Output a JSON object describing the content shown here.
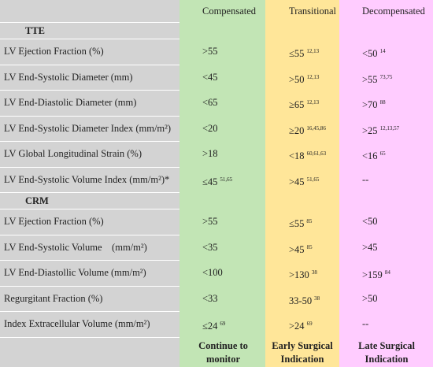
{
  "header": {
    "columns": [
      "Compensated",
      "Transitional",
      "Decompensated"
    ]
  },
  "sections": [
    {
      "title": "TTE",
      "rows": [
        {
          "label": "LV Ejection Fraction (%)",
          "cells": [
            {
              "text": ">55"
            },
            {
              "text": "≤55",
              "sup": "12,13"
            },
            {
              "text": "<50",
              "sup": "14"
            }
          ]
        },
        {
          "label": "LV End-Systolic Diameter (mm)",
          "cells": [
            {
              "text": "<45"
            },
            {
              "text": ">50",
              "sup": "12,13"
            },
            {
              "text": ">55",
              "sup": "73,75"
            }
          ]
        },
        {
          "label": "LV End-Diastolic Diameter (mm)",
          "cells": [
            {
              "text": "<65"
            },
            {
              "text": "≥65",
              "sup": "12,13"
            },
            {
              "text": ">70",
              "sup": "88"
            }
          ]
        },
        {
          "label": "LV End-Systolic Diameter Index (mm/m²)",
          "cells": [
            {
              "text": "<20"
            },
            {
              "text": "≥20",
              "sup": "16,45,86"
            },
            {
              "text": ">25",
              "sup": "12,13,57"
            }
          ]
        },
        {
          "label": "LV Global Longitudinal Strain (%)",
          "cells": [
            {
              "text": ">18"
            },
            {
              "text": "<18",
              "sup": "60,61,63"
            },
            {
              "text": "<16",
              "sup": "65"
            }
          ]
        },
        {
          "label": "LV End-Systolic Volume Index (mm/m²)*",
          "cells": [
            {
              "text": "≤45",
              "sup": "51,65"
            },
            {
              "text": ">45",
              "sup": "51,65"
            },
            {
              "text": "--"
            }
          ]
        }
      ]
    },
    {
      "title": "CRM",
      "rows": [
        {
          "label": "LV Ejection Fraction (%)",
          "cells": [
            {
              "text": ">55"
            },
            {
              "text": "≤55",
              "sup": "85"
            },
            {
              "text": "<50"
            }
          ]
        },
        {
          "label": "LV End-Systolic Volume    (mm/m²)",
          "cells": [
            {
              "text": "<35"
            },
            {
              "text": ">45",
              "sup": "85"
            },
            {
              "text": ">45"
            }
          ]
        },
        {
          "label": "LV End-Diastollic Volume (mm/m²)",
          "cells": [
            {
              "text": "<100"
            },
            {
              "text": ">130",
              "sup": "38"
            },
            {
              "text": ">159",
              "sup": "84"
            }
          ]
        },
        {
          "label": "Regurgitant Fraction (%)",
          "cells": [
            {
              "text": "<33"
            },
            {
              "text": "33-50",
              "sup": "38"
            },
            {
              "text": ">50"
            }
          ]
        },
        {
          "label": "Index Extracellular Volume (mm/m²)",
          "cells": [
            {
              "text": "≤24",
              "sup": "69"
            },
            {
              "text": ">24",
              "sup": "69"
            },
            {
              "text": "--"
            }
          ]
        }
      ]
    }
  ],
  "footer": [
    "Continue to monitor",
    "Early Surgical Indication",
    "Late Surgical Indication"
  ]
}
